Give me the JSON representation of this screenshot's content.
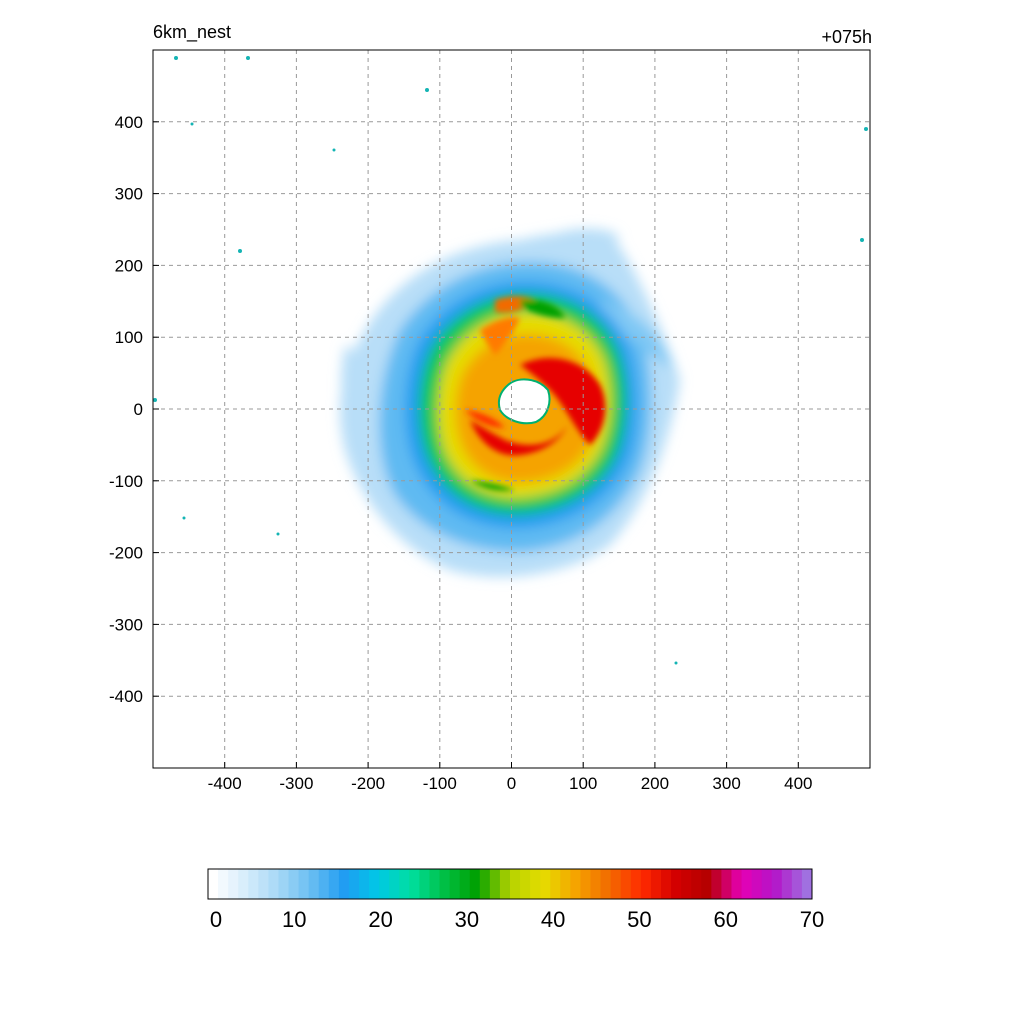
{
  "figure": {
    "title_left": "6km_nest",
    "title_right": "+075h"
  },
  "chart_data": {
    "type": "heatmap",
    "x_ticks": [
      -400,
      -300,
      -200,
      -100,
      0,
      100,
      200,
      300,
      400
    ],
    "y_ticks": [
      400,
      300,
      200,
      100,
      0,
      -100,
      -200,
      -300,
      -400
    ],
    "xlim": [
      -500,
      500
    ],
    "ylim": [
      -500,
      500
    ],
    "grid": true,
    "colorbar": {
      "ticks": [
        0,
        10,
        20,
        30,
        40,
        50,
        60,
        70
      ],
      "range": [
        0,
        70
      ],
      "colors": [
        "#ffffff",
        "#d6ecfb",
        "#a6d8f6",
        "#67bdf2",
        "#1f9cf2",
        "#00c8e6",
        "#00dfa0",
        "#00c046",
        "#00a000",
        "#b4d200",
        "#e6dc00",
        "#f5a300",
        "#f26b00",
        "#ff2a00",
        "#d40000",
        "#b40000",
        "#e600b4",
        "#b414c8",
        "#a070e0"
      ]
    },
    "field": {
      "eye_center": [
        20,
        10
      ],
      "eye_radius_approx": 35,
      "max_value_approx": 52,
      "outer_extent_approx": 230
    }
  }
}
